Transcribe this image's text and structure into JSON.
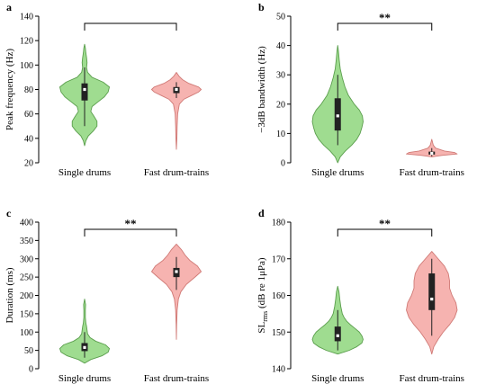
{
  "colors": {
    "single_fill": "#9fdc90",
    "single_stroke": "#5a9e4c",
    "fast_fill": "#f6b3b0",
    "fast_stroke": "#d07a76",
    "box": "#222222",
    "median_dot": "#ffffff"
  },
  "chart_data": [
    {
      "type": "violin",
      "panel": "a",
      "ylabel": "Peak frequency (Hz)",
      "ylim": [
        20,
        140
      ],
      "yticks": [
        20,
        40,
        60,
        80,
        100,
        120,
        140
      ],
      "categories": [
        "Single drums",
        "Fast drum-trains"
      ],
      "significance": "",
      "series": [
        {
          "range": [
            34,
            117
          ],
          "q1": 71,
          "median": 80,
          "q3": 85,
          "whisker_low": 50,
          "whisker_high": 98,
          "density": [
            [
              34,
              0.0
            ],
            [
              38,
              0.05
            ],
            [
              42,
              0.15
            ],
            [
              46,
              0.35
            ],
            [
              50,
              0.5
            ],
            [
              54,
              0.5
            ],
            [
              58,
              0.38
            ],
            [
              62,
              0.25
            ],
            [
              66,
              0.3
            ],
            [
              70,
              0.55
            ],
            [
              74,
              0.8
            ],
            [
              78,
              0.95
            ],
            [
              82,
              1.0
            ],
            [
              86,
              0.75
            ],
            [
              90,
              0.3
            ],
            [
              94,
              0.12
            ],
            [
              98,
              0.08
            ],
            [
              102,
              0.1
            ],
            [
              106,
              0.08
            ],
            [
              110,
              0.05
            ],
            [
              114,
              0.03
            ],
            [
              117,
              0.0
            ]
          ]
        },
        {
          "range": [
            31,
            94
          ],
          "q1": 77,
          "median": 80,
          "q3": 82,
          "whisker_low": 73,
          "whisker_high": 86,
          "density": [
            [
              31,
              0.0
            ],
            [
              40,
              0.02
            ],
            [
              50,
              0.03
            ],
            [
              60,
              0.05
            ],
            [
              68,
              0.12
            ],
            [
              72,
              0.3
            ],
            [
              75,
              0.6
            ],
            [
              78,
              0.9
            ],
            [
              80,
              1.0
            ],
            [
              82,
              0.9
            ],
            [
              85,
              0.5
            ],
            [
              88,
              0.25
            ],
            [
              91,
              0.1
            ],
            [
              94,
              0.0
            ]
          ]
        }
      ]
    },
    {
      "type": "violin",
      "panel": "b",
      "ylabel": "−3dB bandwidth (Hz)",
      "ylim": [
        0,
        50
      ],
      "yticks": [
        0,
        10,
        20,
        30,
        40,
        50
      ],
      "categories": [
        "Single drums",
        "Fast drum-trains"
      ],
      "significance": "**",
      "series": [
        {
          "range": [
            0,
            40
          ],
          "q1": 11,
          "median": 16,
          "q3": 22,
          "whisker_low": 6,
          "whisker_high": 30,
          "density": [
            [
              0,
              0.0
            ],
            [
              2,
              0.1
            ],
            [
              4,
              0.3
            ],
            [
              6,
              0.55
            ],
            [
              8,
              0.75
            ],
            [
              10,
              0.88
            ],
            [
              12,
              0.95
            ],
            [
              14,
              1.0
            ],
            [
              16,
              0.97
            ],
            [
              18,
              0.85
            ],
            [
              20,
              0.65
            ],
            [
              23,
              0.42
            ],
            [
              26,
              0.28
            ],
            [
              29,
              0.18
            ],
            [
              32,
              0.1
            ],
            [
              35,
              0.06
            ],
            [
              38,
              0.03
            ],
            [
              40,
              0.0
            ]
          ]
        },
        {
          "range": [
            2,
            8
          ],
          "q1": 2.8,
          "median": 3.2,
          "q3": 3.8,
          "whisker_low": 2.2,
          "whisker_high": 5,
          "density": [
            [
              2,
              0.0
            ],
            [
              2.5,
              0.4
            ],
            [
              3,
              1.0
            ],
            [
              3.5,
              0.9
            ],
            [
              4,
              0.5
            ],
            [
              5,
              0.15
            ],
            [
              6,
              0.06
            ],
            [
              7,
              0.03
            ],
            [
              8,
              0.0
            ]
          ]
        }
      ]
    },
    {
      "type": "violin",
      "panel": "c",
      "ylabel": "Duration (ms)",
      "ylim": [
        0,
        400
      ],
      "yticks": [
        0,
        50,
        100,
        150,
        200,
        250,
        300,
        350,
        400
      ],
      "categories": [
        "Single drums",
        "Fast drum-trains"
      ],
      "significance": "**",
      "series": [
        {
          "range": [
            15,
            190
          ],
          "q1": 48,
          "median": 58,
          "q3": 70,
          "whisker_low": 30,
          "whisker_high": 100,
          "density": [
            [
              15,
              0.0
            ],
            [
              25,
              0.25
            ],
            [
              35,
              0.7
            ],
            [
              45,
              0.95
            ],
            [
              55,
              1.0
            ],
            [
              65,
              0.85
            ],
            [
              75,
              0.45
            ],
            [
              85,
              0.22
            ],
            [
              95,
              0.12
            ],
            [
              105,
              0.1
            ],
            [
              115,
              0.08
            ],
            [
              125,
              0.05
            ],
            [
              140,
              0.03
            ],
            [
              160,
              0.03
            ],
            [
              175,
              0.04
            ],
            [
              190,
              0.0
            ]
          ]
        },
        {
          "range": [
            80,
            340
          ],
          "q1": 250,
          "median": 265,
          "q3": 275,
          "whisker_low": 215,
          "whisker_high": 305,
          "density": [
            [
              80,
              0.0
            ],
            [
              120,
              0.01
            ],
            [
              160,
              0.03
            ],
            [
              190,
              0.08
            ],
            [
              210,
              0.18
            ],
            [
              230,
              0.4
            ],
            [
              250,
              0.75
            ],
            [
              265,
              1.0
            ],
            [
              280,
              0.85
            ],
            [
              295,
              0.55
            ],
            [
              310,
              0.35
            ],
            [
              325,
              0.2
            ],
            [
              340,
              0.0
            ]
          ]
        }
      ]
    },
    {
      "type": "violin",
      "panel": "d",
      "ylabel": "SL_rms (dB re 1μPa)",
      "ylim": [
        140,
        180
      ],
      "yticks": [
        140,
        150,
        160,
        170,
        180
      ],
      "categories": [
        "Single drums",
        "Fast drum-trains"
      ],
      "significance": "**",
      "series": [
        {
          "range": [
            144,
            162.5
          ],
          "q1": 147.5,
          "median": 149,
          "q3": 151.5,
          "whisker_low": 145,
          "whisker_high": 156,
          "density": [
            [
              144,
              0.0
            ],
            [
              145,
              0.45
            ],
            [
              146,
              0.75
            ],
            [
              147,
              0.95
            ],
            [
              148,
              1.0
            ],
            [
              149,
              0.95
            ],
            [
              150,
              0.85
            ],
            [
              151,
              0.68
            ],
            [
              152,
              0.5
            ],
            [
              153,
              0.35
            ],
            [
              154,
              0.25
            ],
            [
              155,
              0.18
            ],
            [
              157,
              0.12
            ],
            [
              159,
              0.08
            ],
            [
              161,
              0.05
            ],
            [
              162.5,
              0.0
            ]
          ]
        },
        {
          "range": [
            144,
            172
          ],
          "q1": 156,
          "median": 159,
          "q3": 166,
          "whisker_low": 149,
          "whisker_high": 170,
          "density": [
            [
              144,
              0.0
            ],
            [
              146,
              0.08
            ],
            [
              148,
              0.25
            ],
            [
              150,
              0.45
            ],
            [
              152,
              0.7
            ],
            [
              154,
              0.9
            ],
            [
              156,
              1.0
            ],
            [
              158,
              0.95
            ],
            [
              160,
              0.8
            ],
            [
              162,
              0.7
            ],
            [
              164,
              0.7
            ],
            [
              166,
              0.65
            ],
            [
              168,
              0.5
            ],
            [
              170,
              0.25
            ],
            [
              172,
              0.0
            ]
          ]
        }
      ]
    }
  ]
}
